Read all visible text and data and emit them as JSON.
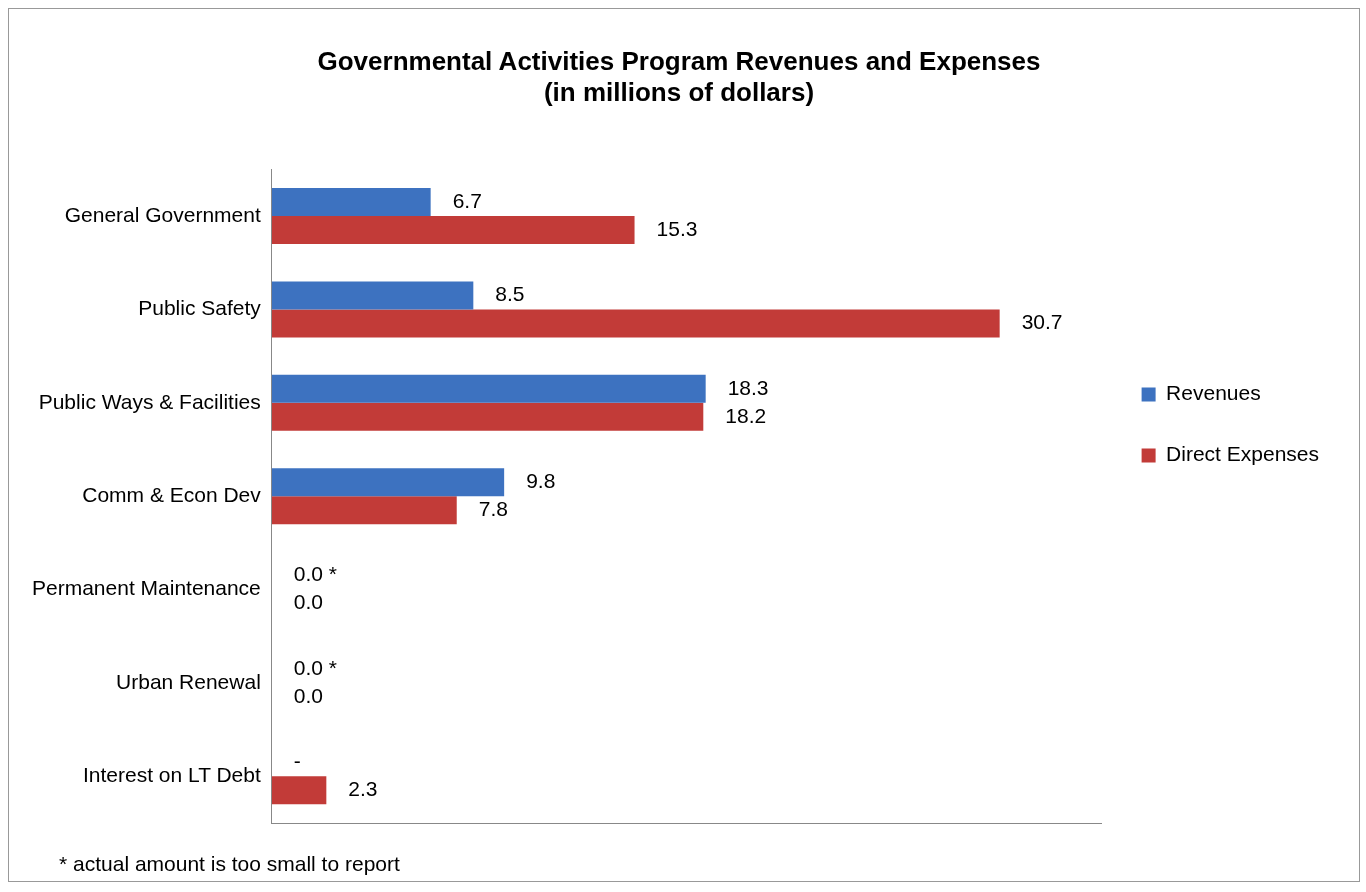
{
  "chart_data": {
    "type": "bar",
    "orientation": "horizontal",
    "title": "Governmental Activities Program Revenues and Expenses\n(in millions of dollars)",
    "categories": [
      "General Government",
      "Public Safety",
      "Public Ways & Facilities",
      "Comm & Econ Dev",
      "Permanent Maintenance",
      "Urban Renewal",
      "Interest on LT Debt"
    ],
    "series": [
      {
        "name": "Revenues",
        "color": "#3d72c0",
        "values": [
          6.7,
          8.5,
          18.3,
          9.8,
          0,
          0,
          0
        ],
        "value_labels": [
          "6.7",
          "8.5",
          "18.3",
          "9.8",
          "0.0 *",
          "0.0 *",
          "-"
        ]
      },
      {
        "name": "Direct Expenses",
        "color": "#c23b38",
        "values": [
          15.3,
          30.7,
          18.2,
          7.8,
          0,
          0,
          2.3
        ],
        "value_labels": [
          "15.3",
          "30.7",
          "18.2",
          "7.8",
          "0.0",
          "0.0",
          "2.3"
        ]
      }
    ],
    "legend": "right",
    "grid": false,
    "annotations": [
      "* actual amount is too small to report"
    ]
  }
}
